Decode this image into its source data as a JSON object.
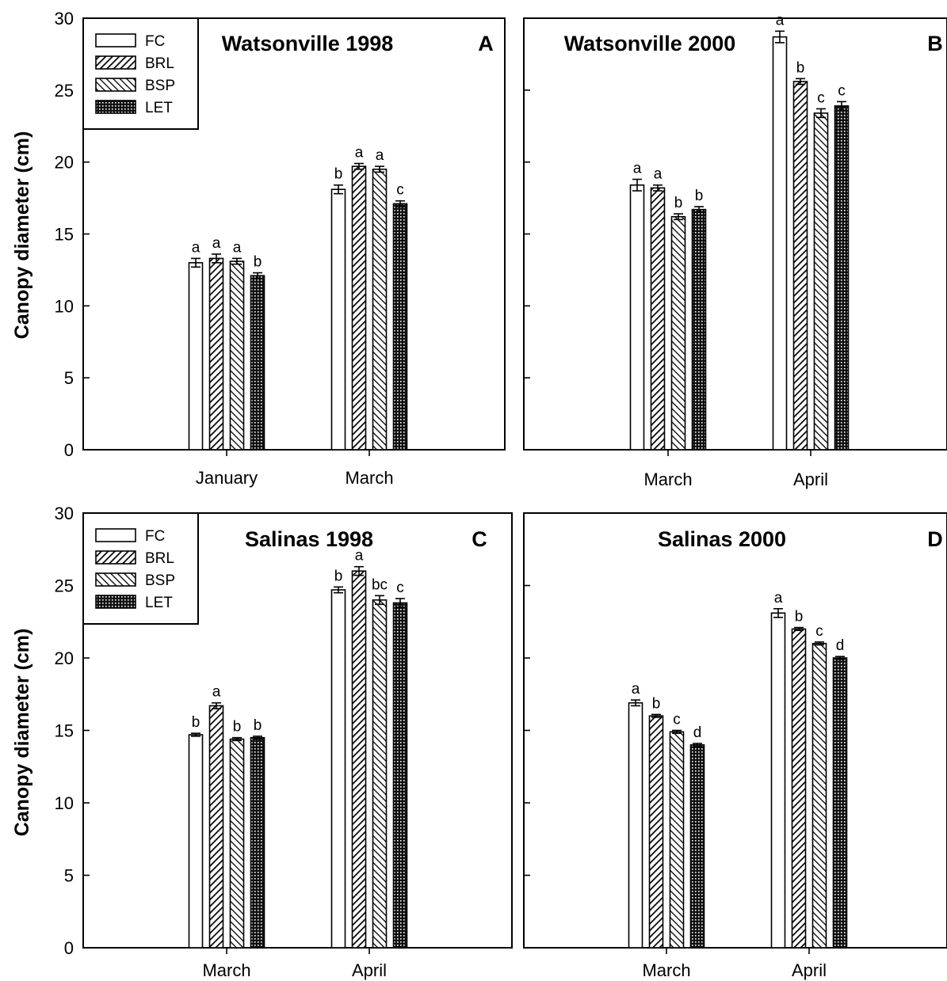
{
  "y_axis_title": "Canopy diameter (cm)",
  "legend": [
    "FC",
    "BRL",
    "BSP",
    "LET"
  ],
  "chart_data": [
    {
      "type": "bar",
      "title": "Watsonville 1998",
      "panel_letter": "A",
      "ylabel": "Canopy diameter (cm)",
      "ylim": [
        0,
        30
      ],
      "yticks": [
        0,
        5,
        10,
        15,
        20,
        25,
        30
      ],
      "categories": [
        "January",
        "March"
      ],
      "series": [
        {
          "name": "FC",
          "values": [
            13.0,
            18.1
          ],
          "errors": [
            0.3,
            0.3
          ],
          "labels": [
            "a",
            "b"
          ]
        },
        {
          "name": "BRL",
          "values": [
            13.3,
            19.7
          ],
          "errors": [
            0.3,
            0.2
          ],
          "labels": [
            "a",
            "a"
          ]
        },
        {
          "name": "BSP",
          "values": [
            13.1,
            19.5
          ],
          "errors": [
            0.2,
            0.2
          ],
          "labels": [
            "a",
            "a"
          ]
        },
        {
          "name": "LET",
          "values": [
            12.1,
            17.1
          ],
          "errors": [
            0.2,
            0.2
          ],
          "labels": [
            "b",
            "c"
          ]
        }
      ]
    },
    {
      "type": "bar",
      "title": "Watsonville 2000",
      "panel_letter": "B",
      "ylabel": "Canopy diameter (cm)",
      "ylim": [
        0,
        30
      ],
      "yticks": [
        0,
        5,
        10,
        15,
        20,
        25,
        30
      ],
      "categories": [
        "March",
        "April"
      ],
      "series": [
        {
          "name": "FC",
          "values": [
            18.4,
            28.7
          ],
          "errors": [
            0.4,
            0.4
          ],
          "labels": [
            "a",
            "a"
          ]
        },
        {
          "name": "BRL",
          "values": [
            18.2,
            25.6
          ],
          "errors": [
            0.2,
            0.2
          ],
          "labels": [
            "a",
            "b"
          ]
        },
        {
          "name": "BSP",
          "values": [
            16.2,
            23.4
          ],
          "errors": [
            0.2,
            0.3
          ],
          "labels": [
            "b",
            "c"
          ]
        },
        {
          "name": "LET",
          "values": [
            16.7,
            23.9
          ],
          "errors": [
            0.2,
            0.3
          ],
          "labels": [
            "b",
            "c"
          ]
        }
      ]
    },
    {
      "type": "bar",
      "title": "Salinas 1998",
      "panel_letter": "C",
      "ylabel": "Canopy diameter (cm)",
      "ylim": [
        0,
        30
      ],
      "yticks": [
        0,
        5,
        10,
        15,
        20,
        25,
        30
      ],
      "categories": [
        "March",
        "April"
      ],
      "series": [
        {
          "name": "FC",
          "values": [
            14.7,
            24.7
          ],
          "errors": [
            0.1,
            0.2
          ],
          "labels": [
            "b",
            "b"
          ]
        },
        {
          "name": "BRL",
          "values": [
            16.7,
            26.0
          ],
          "errors": [
            0.2,
            0.3
          ],
          "labels": [
            "a",
            "a"
          ]
        },
        {
          "name": "BSP",
          "values": [
            14.4,
            24.0
          ],
          "errors": [
            0.1,
            0.3
          ],
          "labels": [
            "b",
            "bc"
          ]
        },
        {
          "name": "LET",
          "values": [
            14.5,
            23.8
          ],
          "errors": [
            0.1,
            0.3
          ],
          "labels": [
            "b",
            "c"
          ]
        }
      ]
    },
    {
      "type": "bar",
      "title": "Salinas 2000",
      "panel_letter": "D",
      "ylabel": "Canopy diameter (cm)",
      "ylim": [
        0,
        30
      ],
      "yticks": [
        0,
        5,
        10,
        15,
        20,
        25,
        30
      ],
      "categories": [
        "March",
        "April"
      ],
      "series": [
        {
          "name": "FC",
          "values": [
            16.9,
            23.1
          ],
          "errors": [
            0.2,
            0.3
          ],
          "labels": [
            "a",
            "a"
          ]
        },
        {
          "name": "BRL",
          "values": [
            16.0,
            22.0
          ],
          "errors": [
            0.1,
            0.1
          ],
          "labels": [
            "b",
            "b"
          ]
        },
        {
          "name": "BSP",
          "values": [
            14.9,
            21.0
          ],
          "errors": [
            0.1,
            0.1
          ],
          "labels": [
            "c",
            "c"
          ]
        },
        {
          "name": "LET",
          "values": [
            14.0,
            20.0
          ],
          "errors": [
            0.1,
            0.1
          ],
          "labels": [
            "d",
            "d"
          ]
        }
      ]
    }
  ]
}
